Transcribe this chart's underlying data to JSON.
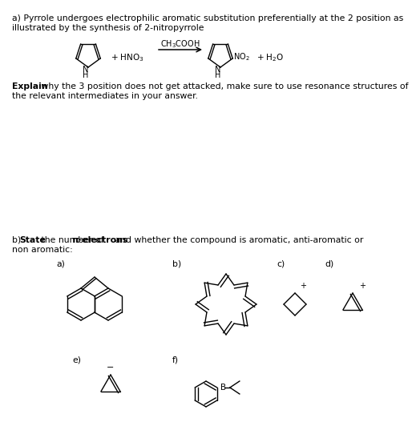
{
  "bg_color": "#ffffff",
  "text_color": "#000000",
  "line_a1": "a) Pyrrole undergoes electrophilic aromatic substitution preferentially at the 2 position as",
  "line_a2": "illustrated by the synthesis of 2-nitropyrrole",
  "explain_bold": "Explain",
  "explain_rest": " why the 3 position does not get attacked, make sure to use resonance structures of",
  "explain_line2": "the relevant intermediates in your answer.",
  "line_b1_pre": "b) ",
  "line_b1_bold1": "State",
  "line_b1_mid": " the number of ",
  "line_b1_bold2": "π-electrons",
  "line_b1_end": " and whether the compound is aromatic, anti-aromatic or",
  "line_b2": "non aromatic:",
  "fs_main": 7.8,
  "fs_label": 7.8,
  "fs_chem": 7.0
}
